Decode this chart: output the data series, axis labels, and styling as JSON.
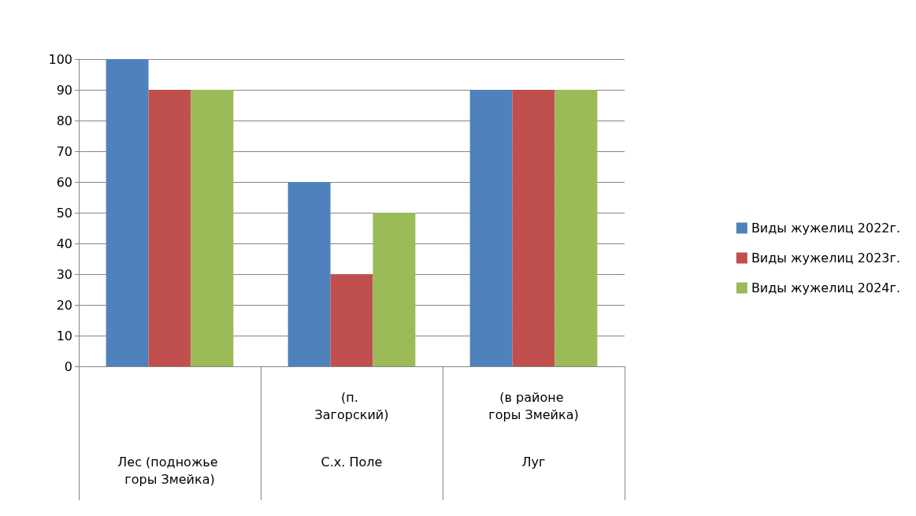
{
  "chart_data": {
    "type": "bar",
    "categories": [
      "Лес (подножье горы Змейка)",
      "С.х. Поле",
      "Луг"
    ],
    "series": [
      {
        "name": "Виды жужелиц 2022г.",
        "color": "#4f81bd",
        "values": [
          100,
          60,
          90
        ]
      },
      {
        "name": "Виды жужелиц 2023г.",
        "color": "#c0504d",
        "values": [
          90,
          30,
          90
        ]
      },
      {
        "name": "Виды жужелиц 2024г.",
        "color": "#9bbb59",
        "values": [
          90,
          50,
          90
        ]
      }
    ],
    "annotations": [
      "(п. Загорский)",
      "(в районе горы Змейка)"
    ],
    "ylim": [
      0,
      100
    ],
    "yticks": [
      0,
      10,
      20,
      30,
      40,
      50,
      60,
      70,
      80,
      90,
      100
    ],
    "grid": "y",
    "legend": "right"
  }
}
